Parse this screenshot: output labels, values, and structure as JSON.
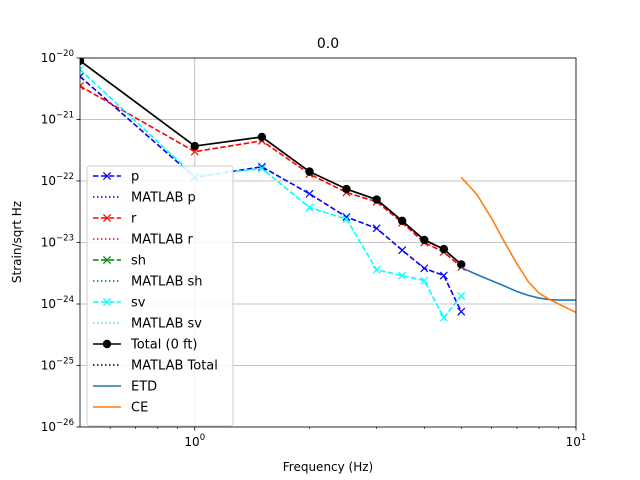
{
  "chart_data": {
    "type": "line",
    "title": "0.0",
    "xlabel": "Frequency (Hz)",
    "ylabel": "Strain/sqrt Hz",
    "xscale": "log",
    "yscale": "log",
    "xlim": [
      0.5,
      10
    ],
    "ylim": [
      1e-26,
      1e-20
    ],
    "grid": true,
    "legend_position": "lower-left",
    "x_tick_labels": [
      {
        "value": 1,
        "base": "10",
        "exp": "0"
      },
      {
        "value": 10,
        "base": "10",
        "exp": "1"
      }
    ],
    "y_tick_labels": [
      {
        "value": 1e-26,
        "base": "10",
        "exp": "−26"
      },
      {
        "value": 1e-25,
        "base": "10",
        "exp": "−25"
      },
      {
        "value": 1e-24,
        "base": "10",
        "exp": "−24"
      },
      {
        "value": 1e-23,
        "base": "10",
        "exp": "−23"
      },
      {
        "value": 1e-22,
        "base": "10",
        "exp": "−22"
      },
      {
        "value": 1e-21,
        "base": "10",
        "exp": "−21"
      },
      {
        "value": 1e-20,
        "base": "10",
        "exp": "−20"
      }
    ],
    "series": [
      {
        "name": "p",
        "color": "#0000ff",
        "dash": "dashed",
        "marker": "x",
        "x": [
          0.5,
          1.0,
          1.5,
          2.0,
          2.5,
          3.0,
          3.5,
          4.0,
          4.5,
          5.0
        ],
        "y": [
          5e-21,
          1.15e-22,
          1.7e-22,
          6.2e-23,
          2.6e-23,
          1.7e-23,
          7.5e-24,
          3.8e-24,
          2.9e-24,
          7.5e-25
        ]
      },
      {
        "name": "MATLAB p",
        "color": "#0000ff",
        "dash": "dotted",
        "marker": "none",
        "x": [],
        "y": []
      },
      {
        "name": "r",
        "color": "#ff0000",
        "dash": "dashed",
        "marker": "x",
        "x": [
          0.5,
          1.0,
          1.5,
          2.0,
          2.5,
          3.0,
          3.5,
          4.0,
          4.5,
          5.0
        ],
        "y": [
          3.5e-21,
          3e-22,
          4.5e-22,
          1.3e-22,
          6.5e-23,
          4.6e-23,
          2.1e-23,
          1e-23,
          7e-24,
          4e-24
        ]
      },
      {
        "name": "MATLAB r",
        "color": "#ff0000",
        "dash": "dotted",
        "marker": "none",
        "x": [],
        "y": []
      },
      {
        "name": "sh",
        "color": "#008000",
        "dash": "dashed",
        "marker": "x",
        "x": [],
        "y": []
      },
      {
        "name": "MATLAB sh",
        "color": "#008000",
        "dash": "dotted",
        "marker": "none",
        "x": [],
        "y": []
      },
      {
        "name": "sv",
        "color": "#00ffff",
        "dash": "dashed",
        "marker": "x",
        "x": [
          0.5,
          1.0,
          1.5,
          2.0,
          2.5,
          3.0,
          3.5,
          4.0,
          4.5,
          5.0
        ],
        "y": [
          6.5e-21,
          1.2e-22,
          1.6e-22,
          3.7e-23,
          2.4e-23,
          3.6e-24,
          2.9e-24,
          2.4e-24,
          6e-25,
          1.35e-24
        ]
      },
      {
        "name": "MATLAB sv",
        "color": "#00ffff",
        "dash": "dotted",
        "marker": "none",
        "x": [],
        "y": []
      },
      {
        "name": "Total (0 ft)",
        "color": "#000000",
        "dash": "solid",
        "marker": "o",
        "x": [
          0.5,
          1.0,
          1.5,
          2.0,
          2.5,
          3.0,
          3.5,
          4.0,
          4.5,
          5.0
        ],
        "y": [
          9e-21,
          3.7e-22,
          5.2e-22,
          1.42e-22,
          7.4e-23,
          5e-23,
          2.25e-23,
          1.1e-23,
          7.8e-24,
          4.4e-24
        ]
      },
      {
        "name": "MATLAB Total",
        "color": "#000000",
        "dash": "dotted",
        "marker": "none",
        "x": [],
        "y": []
      },
      {
        "name": "ETD",
        "color": "#1f77b4",
        "dash": "solid",
        "marker": "none",
        "x": [
          5.0,
          5.5,
          6.0,
          6.5,
          7.0,
          7.5,
          8.0,
          8.5,
          9.0,
          9.5,
          10.0
        ],
        "y": [
          3.9e-24,
          3e-24,
          2.4e-24,
          1.95e-24,
          1.6e-24,
          1.38e-24,
          1.25e-24,
          1.18e-24,
          1.16e-24,
          1.16e-24,
          1.16e-24
        ]
      },
      {
        "name": "CE",
        "color": "#ff7f0e",
        "dash": "solid",
        "marker": "none",
        "x": [
          5.0,
          5.5,
          6.0,
          6.5,
          7.0,
          7.5,
          8.0,
          8.5,
          9.0,
          9.5,
          10.0
        ],
        "y": [
          1.15e-22,
          6e-23,
          2.5e-23,
          1e-23,
          4.5e-24,
          2.3e-24,
          1.5e-24,
          1.2e-24,
          1e-24,
          8.5e-25,
          7.3e-25
        ]
      }
    ]
  }
}
